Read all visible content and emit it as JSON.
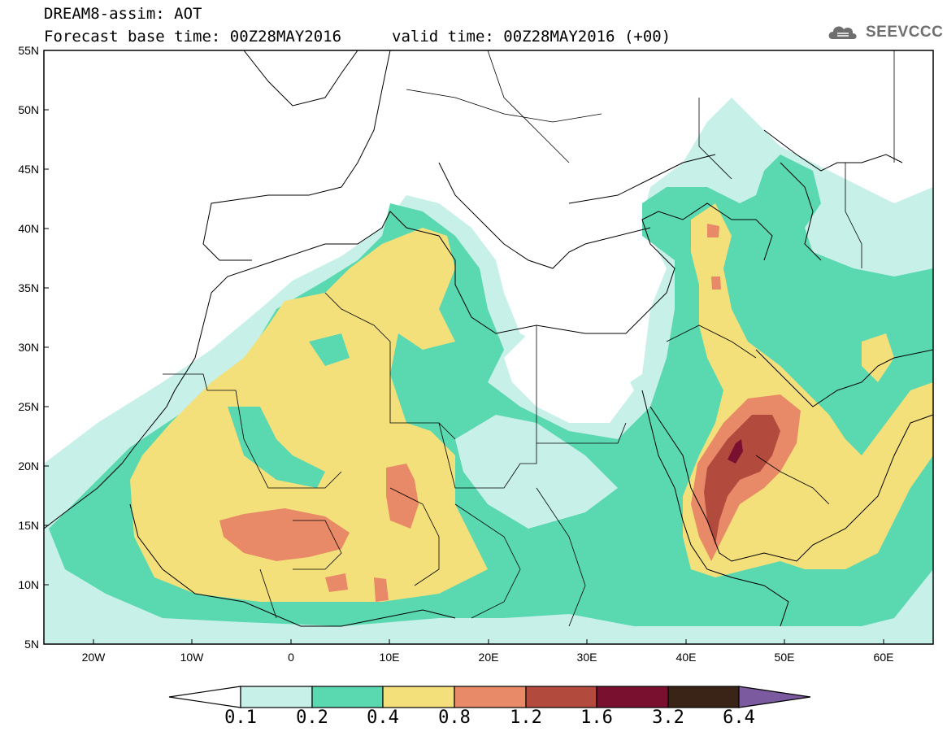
{
  "header": {
    "title_line1": "DREAM8-assim: AOT",
    "title_line2": "Forecast base time: 00Z28MAY2016",
    "valid_time": "valid time: 00Z28MAY2016 (+00)",
    "logo_text": "SEEVCCC"
  },
  "axes": {
    "lat_labels": [
      "55N",
      "50N",
      "45N",
      "40N",
      "35N",
      "30N",
      "25N",
      "20N",
      "15N",
      "10N",
      "5N"
    ],
    "lon_labels": [
      "20W",
      "10W",
      "0",
      "10E",
      "20E",
      "30E",
      "40E",
      "50E",
      "60E"
    ],
    "lat_range": [
      5,
      55
    ],
    "lon_range": [
      -25,
      65
    ]
  },
  "colorbar": {
    "levels": [
      "0.1",
      "0.2",
      "0.4",
      "0.8",
      "1.2",
      "1.6",
      "3.2",
      "6.4"
    ],
    "colors": [
      "#c6f0e8",
      "#5ad8b0",
      "#f4e07a",
      "#e88a68",
      "#b34a3e",
      "#7a1030",
      "#3a2418",
      "#7b5aa0"
    ],
    "low_color": "#ffffff",
    "high_color": "#7b5aa0"
  },
  "legend_colors": {
    "ocean": "#ffffff",
    "lvl1": "#c6f0e8",
    "lvl2": "#5ad8b0",
    "lvl3": "#f4e07a",
    "lvl4": "#e88a68",
    "lvl5": "#b34a3e",
    "lvl6": "#7a1030"
  }
}
